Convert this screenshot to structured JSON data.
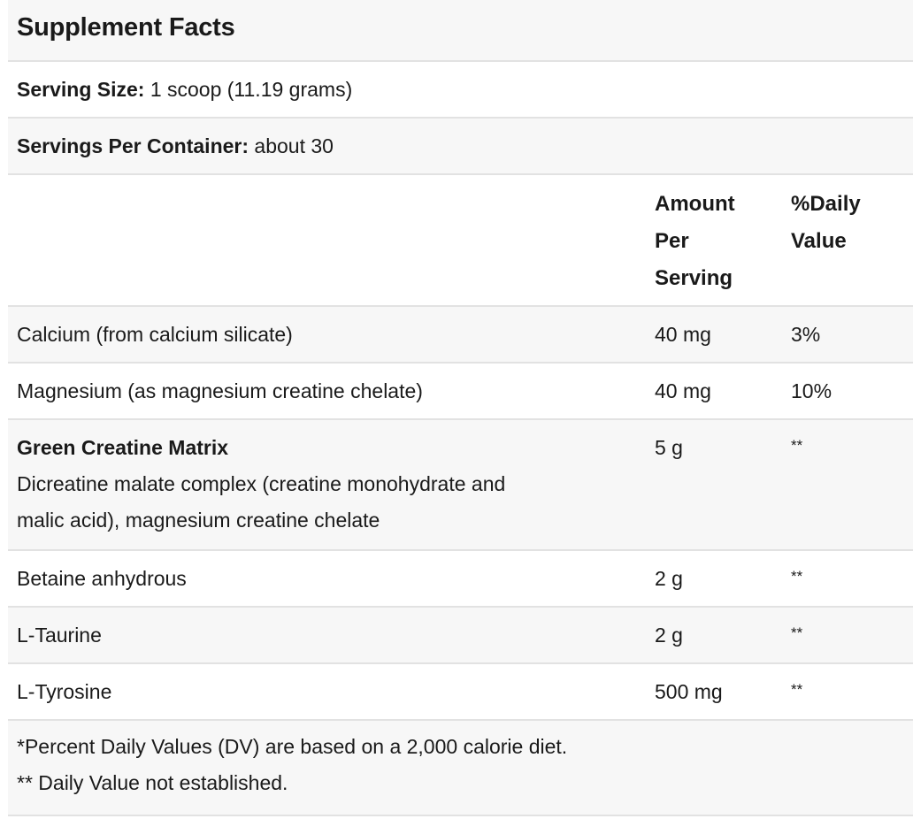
{
  "title": "Supplement Facts",
  "serving_size": {
    "label": "Serving Size:",
    "value": "1 scoop (11.19 grams)"
  },
  "servings_per_container": {
    "label": "Servings Per Container:",
    "value": "about 30"
  },
  "columns": {
    "amount_lines": [
      "Amount",
      "Per",
      "Serving"
    ],
    "daily_value_lines": [
      "%Daily",
      "Value"
    ]
  },
  "rows": [
    {
      "name": "Calcium (from calcium silicate)",
      "amount": "40 mg",
      "daily_value": "3%"
    },
    {
      "name": "Magnesium (as magnesium creatine chelate)",
      "amount": "40 mg",
      "daily_value": "10%"
    },
    {
      "name": "Green Creatine Matrix",
      "description_lines": [
        "Dicreatine malate complex (creatine monohydrate and",
        "malic acid), magnesium creatine chelate"
      ],
      "amount": "5 g",
      "daily_value": "**"
    },
    {
      "name": "Betaine anhydrous",
      "amount": "2 g",
      "daily_value": "**"
    },
    {
      "name": "L-Taurine",
      "amount": "2 g",
      "daily_value": "**"
    },
    {
      "name": "L-Tyrosine",
      "amount": "500 mg",
      "daily_value": "**"
    }
  ],
  "footnotes": {
    "line1": "*Percent Daily Values (DV) are based on a 2,000 calorie diet.",
    "line2": "** Daily Value not established."
  },
  "colors": {
    "shaded_row": "#f7f7f7",
    "divider": "#e2e2e2",
    "text": "#1a1a1a"
  }
}
